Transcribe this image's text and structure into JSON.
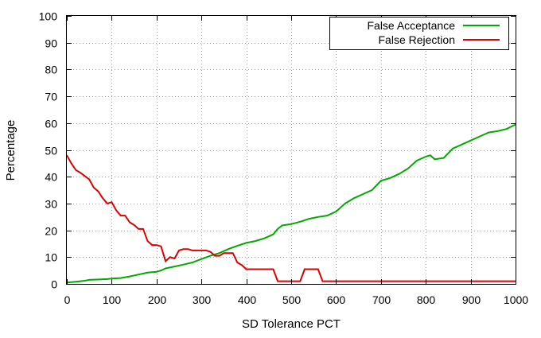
{
  "chart_data": {
    "type": "line",
    "title": "",
    "xlabel": "SD Tolerance PCT",
    "ylabel": "Percentage",
    "xlim": [
      0,
      1000
    ],
    "ylim": [
      0,
      100
    ],
    "xticks": [
      0,
      100,
      200,
      300,
      400,
      500,
      600,
      700,
      800,
      900,
      1000
    ],
    "yticks": [
      0,
      10,
      20,
      30,
      40,
      50,
      60,
      70,
      80,
      90,
      100
    ],
    "grid": true,
    "legend_position": "top-right",
    "series": [
      {
        "name": "False Acceptance",
        "color": "#00aa00",
        "x": [
          0,
          20,
          40,
          50,
          90,
          100,
          120,
          140,
          160,
          180,
          200,
          210,
          220,
          240,
          260,
          280,
          300,
          320,
          340,
          360,
          380,
          400,
          420,
          440,
          460,
          470,
          480,
          500,
          520,
          540,
          560,
          580,
          600,
          620,
          640,
          660,
          680,
          700,
          720,
          740,
          760,
          780,
          800,
          810,
          820,
          840,
          860,
          880,
          900,
          920,
          940,
          960,
          980,
          1000
        ],
        "y": [
          0.5,
          0.8,
          1.2,
          1.5,
          1.8,
          2.0,
          2.2,
          2.8,
          3.5,
          4.2,
          4.5,
          5.0,
          5.8,
          6.5,
          7.2,
          8.0,
          9.3,
          10.5,
          11.5,
          13.0,
          14.2,
          15.3,
          16.0,
          17.0,
          18.5,
          20.5,
          21.8,
          22.3,
          23.2,
          24.3,
          25.0,
          25.5,
          27.0,
          30.0,
          32.0,
          33.5,
          35.0,
          38.5,
          39.5,
          41.0,
          43.0,
          46.0,
          47.5,
          48.0,
          46.5,
          47.0,
          50.5,
          52.0,
          53.5,
          55.0,
          56.5,
          57.0,
          57.8,
          59.5
        ]
      },
      {
        "name": "False Rejection",
        "color": "#dd0000",
        "x": [
          0,
          10,
          20,
          30,
          50,
          60,
          70,
          80,
          90,
          100,
          110,
          120,
          130,
          140,
          150,
          160,
          170,
          180,
          190,
          200,
          210,
          220,
          230,
          240,
          250,
          260,
          270,
          280,
          300,
          310,
          320,
          330,
          340,
          350,
          360,
          370,
          380,
          390,
          400,
          410,
          450,
          460,
          470,
          480,
          500,
          510,
          520,
          530,
          540,
          550,
          560,
          570,
          580,
          590,
          600,
          1000
        ],
        "y": [
          48,
          45,
          42.5,
          41.5,
          39,
          36,
          34.5,
          32,
          30,
          30.5,
          27.5,
          25.5,
          25.5,
          23,
          22,
          20.5,
          20.5,
          16,
          14.5,
          14.5,
          14,
          8.5,
          10,
          9.5,
          12.5,
          13,
          13,
          12.5,
          12.5,
          12.5,
          12,
          10.5,
          10.5,
          11.5,
          11.5,
          11.5,
          8,
          7,
          5.5,
          5.5,
          5.5,
          5.5,
          1,
          1,
          1,
          1,
          1,
          5.5,
          5.5,
          5.5,
          5.5,
          1,
          1,
          1,
          1,
          1
        ]
      }
    ]
  }
}
